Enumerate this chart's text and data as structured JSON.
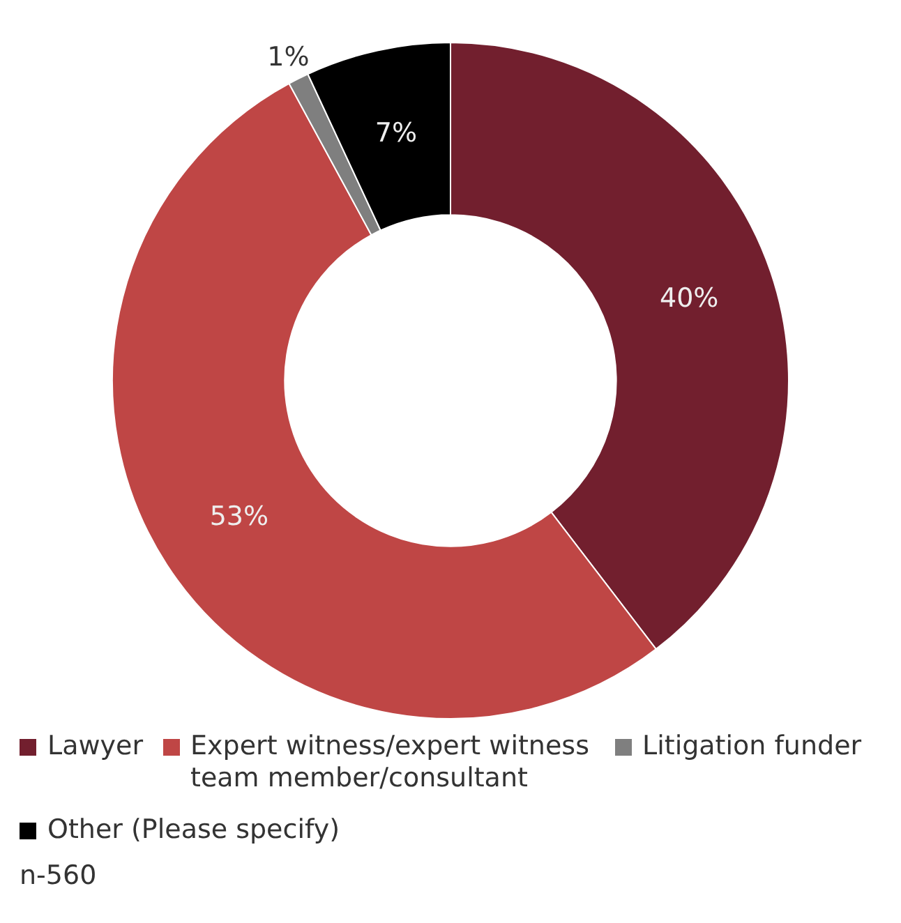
{
  "chart_data": {
    "type": "donut",
    "categories": [
      "Lawyer",
      "Expert witness/expert witness team member/consultant",
      "Litigation funder",
      "Other (Please specify)"
    ],
    "values": [
      40,
      53,
      1,
      7
    ],
    "colors": [
      "#721f2e",
      "#bf4645",
      "#7f7f7f",
      "#000000"
    ],
    "value_labels": [
      "40%",
      "53%",
      "1%",
      "7%"
    ],
    "legend": "bottom",
    "annotations": [
      "n-560"
    ]
  }
}
